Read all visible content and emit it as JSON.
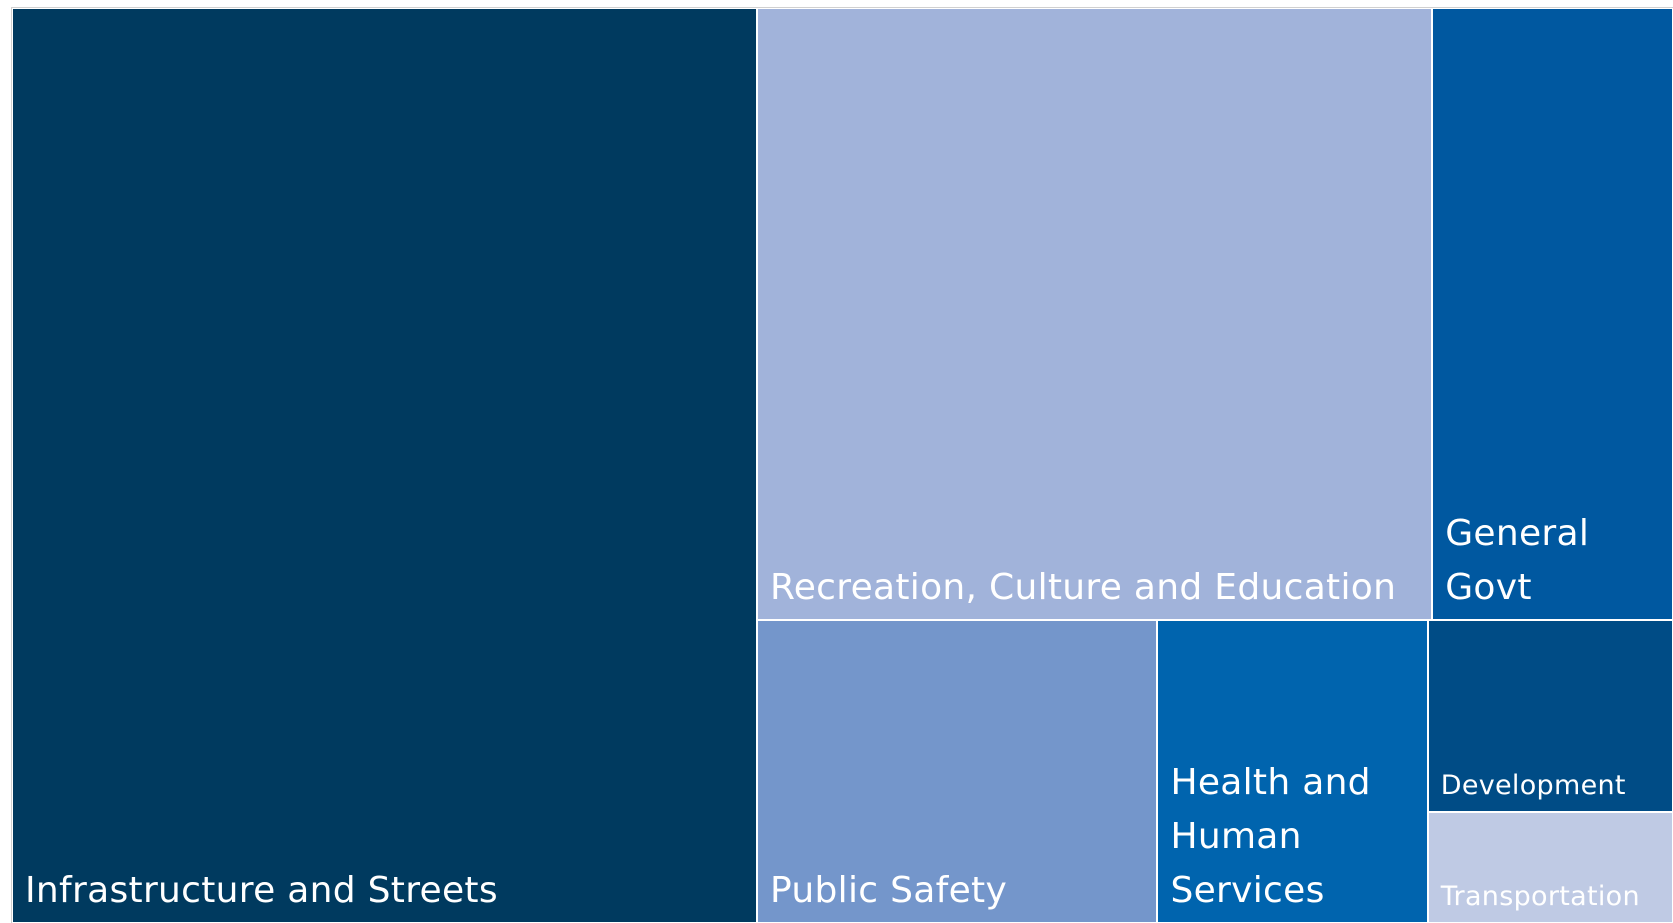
{
  "chart_data": {
    "type": "treemap",
    "categories": [
      "Infrastructure and Streets",
      "Recreation, Culture and Education",
      "General Govt",
      "Public Safety",
      "Health and Human Services",
      "Development",
      "Transportation"
    ],
    "values": [
      44.9,
      27.2,
      9.7,
      8.0,
      5.4,
      3.1,
      1.8
    ],
    "colors": [
      "#003a5f",
      "#a1b3da",
      "#0058a0",
      "#7496cb",
      "#0064ae",
      "#004c86",
      "#bfcae4"
    ]
  }
}
